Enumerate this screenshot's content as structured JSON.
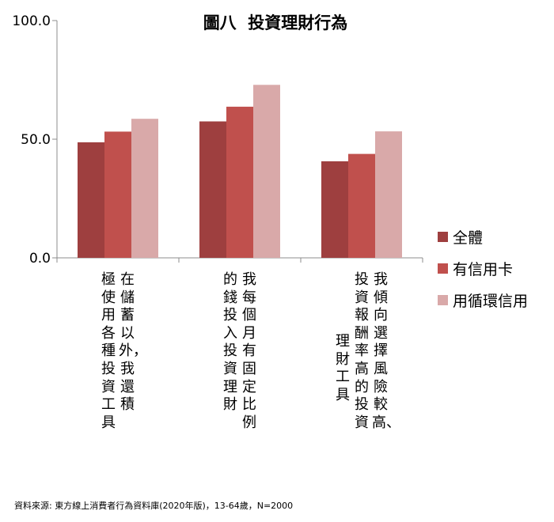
{
  "chart_data": {
    "type": "bar",
    "title": "圖八  投資理財行為",
    "categories": [
      [
        "在儲蓄以外，我還積",
        "極使用各種投資工具"
      ],
      [
        "我每個月有固定比例",
        "的錢投入投資理財"
      ],
      [
        "我傾向選擇風險較高、",
        "投資報酬率高的投資",
        "理財工具"
      ]
    ],
    "series": [
      {
        "name": "全體",
        "values": [
          48.7,
          57.5,
          40.7
        ],
        "color": "#9e3f3f"
      },
      {
        "name": "有信用卡",
        "values": [
          53.2,
          63.7,
          43.8
        ],
        "color": "#c0504d"
      },
      {
        "name": "用循環信用",
        "values": [
          58.6,
          72.9,
          53.3
        ],
        "color": "#d9a9a9"
      }
    ],
    "yticks": [
      "100.0",
      "50.0",
      "0.0"
    ],
    "ylim": [
      0,
      100
    ],
    "legend_position": "right",
    "grid": false
  },
  "source_note": "資料來源: 東方線上消費者行為資料庫(2020年版)，13-64歲，N=2000"
}
